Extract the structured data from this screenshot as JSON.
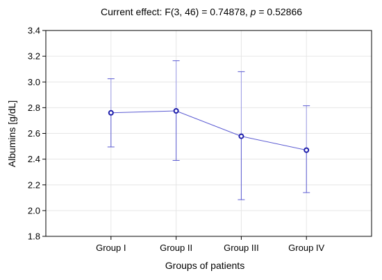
{
  "chart_data": {
    "type": "line",
    "title_prefix": "Current effect: F(3, 46) = 0.74878, ",
    "title_p": "p",
    "title_suffix": " = 0.52866",
    "xlabel": "Groups of patients",
    "ylabel": "Albumins [g/dL]",
    "categories": [
      "Group I",
      "Group II",
      "Group III",
      "Group IV"
    ],
    "series": [
      {
        "values": [
          2.76,
          2.775,
          2.578,
          2.47
        ],
        "error_low": [
          2.495,
          2.39,
          2.085,
          2.14
        ],
        "error_high": [
          3.025,
          3.165,
          3.08,
          2.815
        ]
      }
    ],
    "ylim": [
      1.8,
      3.4
    ],
    "yticks": [
      "1.8",
      "2.0",
      "2.2",
      "2.4",
      "2.6",
      "2.8",
      "3.0",
      "3.2",
      "3.4"
    ],
    "grid": true,
    "colors": {
      "line": "#5a5ad2",
      "marker": "#1c1caa",
      "error_bar": "#5a5ad2",
      "error_bar_light": "#9a9ae6",
      "grid": "#e6e6e6",
      "frame": "#000000"
    }
  }
}
